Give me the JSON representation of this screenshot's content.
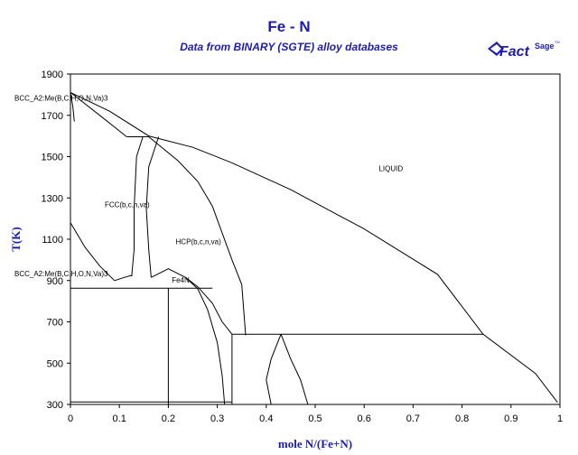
{
  "header": {
    "title": "Fe - N",
    "subtitle": "Data from BINARY (SGTE) alloy databases",
    "logo_main": "Fact",
    "logo_sup": "Sage",
    "logo_tm": "TM"
  },
  "colors": {
    "title": "#1c1cb0",
    "axis_label": "#1c1cb0",
    "lines": "#000000",
    "background": "#ffffff"
  },
  "chart_data": {
    "type": "phase-diagram",
    "xlabel": "mole N/(Fe+N)",
    "ylabel": "T(K)",
    "xlim": [
      0,
      1
    ],
    "ylim": [
      300,
      1900
    ],
    "x_ticks": [
      "0",
      "0.1",
      "0.2",
      "0.3",
      "0.4",
      "0.5",
      "0.6",
      "0.7",
      "0.8",
      "0.9",
      "1"
    ],
    "y_ticks": [
      "300",
      "500",
      "700",
      "900",
      "1100",
      "1300",
      "1500",
      "1700",
      "1900"
    ],
    "phase_labels": [
      {
        "text": "LIQUID",
        "x": 0.63,
        "y": 1430
      },
      {
        "text": "FCC(b,c,n,va)",
        "x": 0.07,
        "y": 1255
      },
      {
        "text": "HCP(b,c,n,va)",
        "x": 0.215,
        "y": 1075
      },
      {
        "text": "Fe4N",
        "x": 0.207,
        "y": 890
      },
      {
        "text": "BCC_A2:Me(B,C,H,O,N,Va)3",
        "x": 0.0,
        "y": 1770,
        "anchor": "end"
      },
      {
        "text": "BCC_A2:Me(B,C,H,O,N,Va)3",
        "x": 0.0,
        "y": 920,
        "anchor": "end"
      }
    ],
    "boundaries": [
      {
        "name": "liquidus",
        "points": [
          [
            0,
            1811
          ],
          [
            0.08,
            1720
          ],
          [
            0.16,
            1600
          ],
          [
            0.25,
            1545
          ],
          [
            0.33,
            1470
          ],
          [
            0.45,
            1340
          ],
          [
            0.6,
            1150
          ],
          [
            0.75,
            930
          ],
          [
            0.843,
            640
          ],
          [
            0.95,
            450
          ],
          [
            0.995,
            310
          ]
        ]
      },
      {
        "name": "bcc-liquid",
        "points": [
          [
            0,
            1811
          ],
          [
            0.06,
            1700
          ],
          [
            0.115,
            1596
          ]
        ]
      },
      {
        "name": "bcc-solvus-high",
        "points": [
          [
            0,
            1811
          ],
          [
            0.005,
            1740
          ],
          [
            0.008,
            1670
          ]
        ]
      },
      {
        "name": "peritectic-fcc",
        "points": [
          [
            0.115,
            1596
          ],
          [
            0.16,
            1596
          ]
        ]
      },
      {
        "name": "fcc-left",
        "points": [
          [
            0.148,
            1596
          ],
          [
            0.135,
            1500
          ],
          [
            0.13,
            1250
          ],
          [
            0.13,
            1050
          ],
          [
            0.125,
            920
          ]
        ]
      },
      {
        "name": "fcc-right",
        "points": [
          [
            0.18,
            1596
          ],
          [
            0.16,
            1450
          ],
          [
            0.155,
            1250
          ],
          [
            0.16,
            1050
          ],
          [
            0.165,
            915
          ]
        ]
      },
      {
        "name": "hcp-right",
        "points": [
          [
            0.16,
            1596
          ],
          [
            0.22,
            1480
          ],
          [
            0.26,
            1380
          ],
          [
            0.29,
            1260
          ],
          [
            0.31,
            1130
          ],
          [
            0.33,
            1000
          ],
          [
            0.35,
            880
          ],
          [
            0.358,
            635
          ]
        ]
      },
      {
        "name": "bcc-fcc-low",
        "points": [
          [
            0,
            1180
          ],
          [
            0.03,
            1060
          ],
          [
            0.06,
            970
          ],
          [
            0.09,
            900
          ]
        ]
      },
      {
        "name": "fcc-bcc-curve",
        "points": [
          [
            0.09,
            900
          ],
          [
            0.11,
            915
          ],
          [
            0.125,
            925
          ]
        ]
      },
      {
        "name": "eutectoid-1",
        "points": [
          [
            0,
            863
          ],
          [
            0.29,
            863
          ]
        ]
      },
      {
        "name": "fe4n-line",
        "points": [
          [
            0.2,
            863
          ],
          [
            0.2,
            300
          ]
        ]
      },
      {
        "name": "fe4n-cap",
        "points": [
          [
            0.165,
            915
          ],
          [
            0.2,
            957
          ],
          [
            0.235,
            915
          ]
        ]
      },
      {
        "name": "eps-left-lower",
        "points": [
          [
            0.235,
            915
          ],
          [
            0.26,
            860
          ],
          [
            0.28,
            760
          ],
          [
            0.3,
            600
          ],
          [
            0.31,
            440
          ],
          [
            0.315,
            300
          ]
        ]
      },
      {
        "name": "eps-right",
        "points": [
          [
            0.235,
            915
          ],
          [
            0.26,
            870
          ],
          [
            0.29,
            790
          ],
          [
            0.31,
            700
          ],
          [
            0.33,
            640
          ]
        ]
      },
      {
        "name": "monotectic",
        "points": [
          [
            0.33,
            640
          ],
          [
            0.843,
            640
          ]
        ]
      },
      {
        "name": "eps-vertical",
        "points": [
          [
            0.33,
            640
          ],
          [
            0.33,
            300
          ]
        ]
      },
      {
        "name": "loop-left",
        "points": [
          [
            0.43,
            640
          ],
          [
            0.41,
            520
          ],
          [
            0.4,
            420
          ],
          [
            0.41,
            300
          ]
        ]
      },
      {
        "name": "loop-right",
        "points": [
          [
            0.43,
            640
          ],
          [
            0.45,
            520
          ],
          [
            0.47,
            420
          ],
          [
            0.485,
            300
          ]
        ]
      },
      {
        "name": "low-tie",
        "points": [
          [
            0,
            312
          ],
          [
            0.33,
            312
          ]
        ]
      }
    ]
  }
}
